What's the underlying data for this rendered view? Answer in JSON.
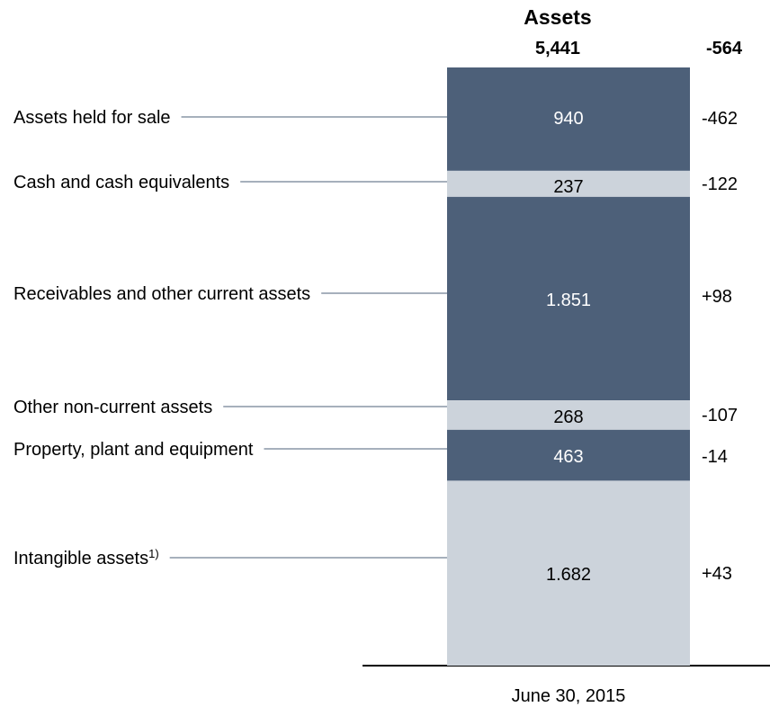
{
  "chart_data": {
    "type": "stacked-bar",
    "title": "Assets",
    "categories": [
      "June 30, 2015"
    ],
    "total": 5441,
    "total_label": "5,441",
    "total_change": -564,
    "series": [
      {
        "name": "Assets held for sale",
        "color": "#4d6079",
        "values": [
          940
        ],
        "change": -462
      },
      {
        "name": "Cash and cash equivalents",
        "color": "#ccd3db",
        "values": [
          237
        ],
        "change": -122
      },
      {
        "name": "Receivables and other current assets",
        "color": "#4d6079",
        "values": [
          1851
        ],
        "value_labels": [
          "1.851"
        ],
        "change": {
          "value": 98,
          "label": "+98"
        }
      },
      {
        "name": "Other non-current assets",
        "color": "#ccd3db",
        "values": [
          268
        ],
        "change": -107
      },
      {
        "name": "Property, plant and equipment",
        "color": "#4d6079",
        "values": [
          463
        ],
        "change": -14
      },
      {
        "name": "Intangible assets",
        "footnote": "1)",
        "color": "#ccd3db",
        "values": [
          1682
        ],
        "value_labels": [
          "1.682"
        ],
        "change": {
          "value": 43,
          "label": "+43"
        }
      }
    ]
  }
}
